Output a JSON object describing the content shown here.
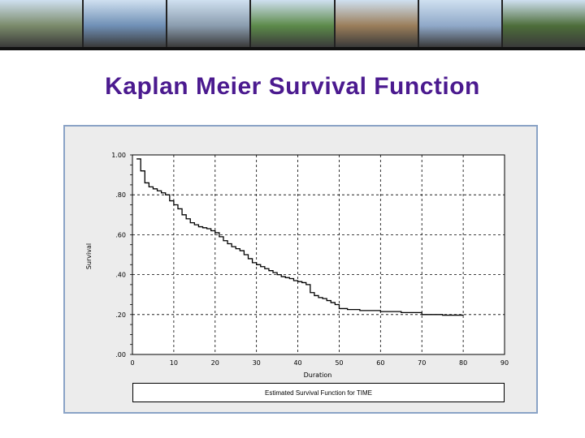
{
  "slide": {
    "title": "Kaplan Meier Survival Function",
    "banner_photos": [
      "#7a8a6a",
      "#6f8fb5",
      "#8a9cae",
      "#5c8a4a",
      "#9a7d5a",
      "#8fa8c8",
      "#4d6d3a"
    ]
  },
  "colors": {
    "title": "#4b1a8f",
    "frame_border": "#8aa3c6",
    "plot_bg": "#ececec",
    "curve": "#000000"
  },
  "chart_data": {
    "type": "line",
    "title": "",
    "xlabel": "Duration",
    "ylabel": "Survival",
    "xlim": [
      0,
      90
    ],
    "ylim": [
      0.0,
      1.0
    ],
    "x_ticks": [
      0,
      10,
      20,
      30,
      40,
      50,
      60,
      70,
      80,
      90
    ],
    "x_tick_labels": [
      "0",
      "10",
      "20",
      "30",
      "40",
      "50",
      "60",
      "70",
      "80",
      "90"
    ],
    "y_ticks": [
      0.0,
      0.2,
      0.4,
      0.6,
      0.8,
      1.0
    ],
    "y_tick_labels": [
      ".00",
      ".20",
      ".40",
      ".60",
      ".80",
      "1.00"
    ],
    "grid": true,
    "legend_position": "bottom",
    "series": [
      {
        "name": "Estimated Survival Function for TIME",
        "x": [
          1,
          2,
          3,
          4,
          5,
          6,
          7,
          8,
          9,
          10,
          11,
          12,
          13,
          14,
          15,
          16,
          17,
          18,
          19,
          20,
          21,
          22,
          23,
          24,
          25,
          26,
          27,
          28,
          29,
          30,
          31,
          32,
          33,
          34,
          35,
          36,
          37,
          38,
          39,
          40,
          41,
          42,
          43,
          44,
          45,
          46,
          47,
          48,
          49,
          50,
          52,
          55,
          60,
          65,
          70,
          75,
          80
        ],
        "y": [
          0.98,
          0.92,
          0.86,
          0.84,
          0.83,
          0.82,
          0.81,
          0.8,
          0.77,
          0.75,
          0.73,
          0.7,
          0.68,
          0.66,
          0.65,
          0.64,
          0.635,
          0.63,
          0.62,
          0.61,
          0.59,
          0.57,
          0.555,
          0.54,
          0.53,
          0.52,
          0.5,
          0.48,
          0.46,
          0.45,
          0.44,
          0.43,
          0.42,
          0.41,
          0.4,
          0.39,
          0.385,
          0.38,
          0.37,
          0.365,
          0.36,
          0.35,
          0.31,
          0.295,
          0.285,
          0.28,
          0.27,
          0.26,
          0.25,
          0.23,
          0.225,
          0.22,
          0.215,
          0.21,
          0.2,
          0.197,
          0.196
        ]
      }
    ]
  }
}
